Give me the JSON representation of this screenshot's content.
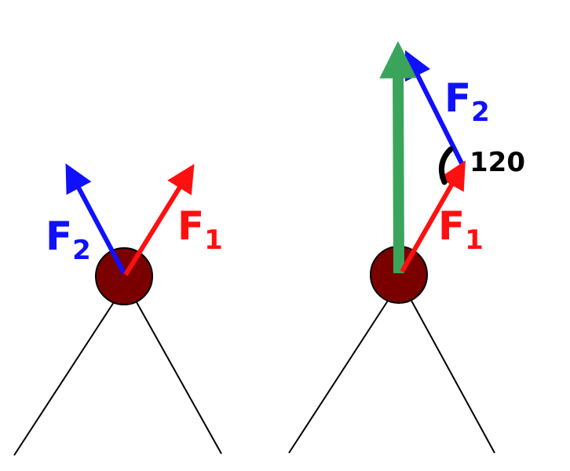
{
  "left": {
    "f2": {
      "symbol": "F",
      "subscript": "2"
    },
    "f1": {
      "symbol": "F",
      "subscript": "1"
    }
  },
  "right": {
    "f2": {
      "symbol": "F",
      "subscript": "2"
    },
    "f1": {
      "symbol": "F",
      "subscript": "1"
    },
    "angle": 120
  }
}
